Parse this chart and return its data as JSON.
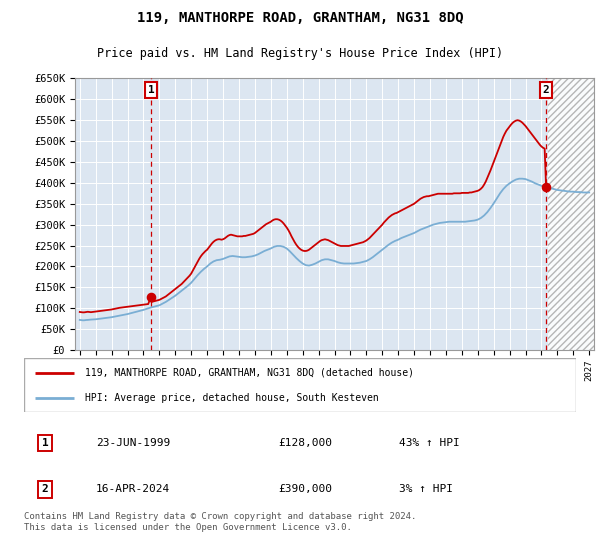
{
  "title": "119, MANTHORPE ROAD, GRANTHAM, NG31 8DQ",
  "subtitle": "Price paid vs. HM Land Registry's House Price Index (HPI)",
  "legend_line1": "119, MANTHORPE ROAD, GRANTHAM, NG31 8DQ (detached house)",
  "legend_line2": "HPI: Average price, detached house, South Kesteven",
  "footer": "Contains HM Land Registry data © Crown copyright and database right 2024.\nThis data is licensed under the Open Government Licence v3.0.",
  "bg_color": "#dce6f1",
  "grid_color": "#ffffff",
  "red_color": "#cc0000",
  "blue_color": "#7aaed4",
  "ylim": [
    0,
    650000
  ],
  "yticks": [
    0,
    50000,
    100000,
    150000,
    200000,
    250000,
    300000,
    350000,
    400000,
    450000,
    500000,
    550000,
    600000,
    650000
  ],
  "xlim_start": 1994.7,
  "xlim_end": 2027.3,
  "hatch_start": 2024.4,
  "point1_x": 1999.47,
  "point1_y": 128000,
  "point2_x": 2024.29,
  "point2_y": 390000,
  "point1_date": "23-JUN-1999",
  "point1_price": "£128,000",
  "point1_hpi": "43% ↑ HPI",
  "point2_date": "16-APR-2024",
  "point2_price": "£390,000",
  "point2_hpi": "3% ↑ HPI",
  "red_hpi_data": [
    [
      1995.0,
      91000
    ],
    [
      1995.1,
      90500
    ],
    [
      1995.2,
      90000
    ],
    [
      1995.3,
      90200
    ],
    [
      1995.4,
      90800
    ],
    [
      1995.5,
      91500
    ],
    [
      1995.6,
      91000
    ],
    [
      1995.7,
      90500
    ],
    [
      1995.8,
      91000
    ],
    [
      1995.9,
      91500
    ],
    [
      1996.0,
      92000
    ],
    [
      1996.1,
      92500
    ],
    [
      1996.2,
      93000
    ],
    [
      1996.3,
      93500
    ],
    [
      1996.4,
      94000
    ],
    [
      1996.5,
      94500
    ],
    [
      1996.6,
      95000
    ],
    [
      1996.7,
      95500
    ],
    [
      1996.8,
      96000
    ],
    [
      1996.9,
      96500
    ],
    [
      1997.0,
      97000
    ],
    [
      1997.1,
      97800
    ],
    [
      1997.2,
      98500
    ],
    [
      1997.3,
      99200
    ],
    [
      1997.4,
      100000
    ],
    [
      1997.5,
      101000
    ],
    [
      1997.6,
      101500
    ],
    [
      1997.7,
      102000
    ],
    [
      1997.8,
      102500
    ],
    [
      1997.9,
      103000
    ],
    [
      1998.0,
      103500
    ],
    [
      1998.1,
      104000
    ],
    [
      1998.2,
      104500
    ],
    [
      1998.3,
      105000
    ],
    [
      1998.4,
      105500
    ],
    [
      1998.5,
      106000
    ],
    [
      1998.6,
      106500
    ],
    [
      1998.7,
      107000
    ],
    [
      1998.8,
      107500
    ],
    [
      1998.9,
      108000
    ],
    [
      1999.0,
      108500
    ],
    [
      1999.1,
      109000
    ],
    [
      1999.2,
      109500
    ],
    [
      1999.3,
      110000
    ],
    [
      1999.47,
      128000
    ],
    [
      1999.5,
      115000
    ],
    [
      1999.6,
      116000
    ],
    [
      1999.7,
      117000
    ],
    [
      1999.8,
      118000
    ],
    [
      1999.9,
      119000
    ],
    [
      2000.0,
      120000
    ],
    [
      2000.1,
      122000
    ],
    [
      2000.2,
      124000
    ],
    [
      2000.3,
      126000
    ],
    [
      2000.4,
      128000
    ],
    [
      2000.5,
      131000
    ],
    [
      2000.6,
      134000
    ],
    [
      2000.7,
      137000
    ],
    [
      2000.8,
      140000
    ],
    [
      2000.9,
      143000
    ],
    [
      2001.0,
      146000
    ],
    [
      2001.1,
      149000
    ],
    [
      2001.2,
      152000
    ],
    [
      2001.3,
      155000
    ],
    [
      2001.4,
      158000
    ],
    [
      2001.5,
      162000
    ],
    [
      2001.6,
      166000
    ],
    [
      2001.7,
      170000
    ],
    [
      2001.8,
      174000
    ],
    [
      2001.9,
      178000
    ],
    [
      2002.0,
      183000
    ],
    [
      2002.1,
      190000
    ],
    [
      2002.2,
      197000
    ],
    [
      2002.3,
      204000
    ],
    [
      2002.4,
      211000
    ],
    [
      2002.5,
      218000
    ],
    [
      2002.6,
      224000
    ],
    [
      2002.7,
      229000
    ],
    [
      2002.8,
      233000
    ],
    [
      2002.9,
      237000
    ],
    [
      2003.0,
      240000
    ],
    [
      2003.1,
      245000
    ],
    [
      2003.2,
      250000
    ],
    [
      2003.3,
      255000
    ],
    [
      2003.4,
      259000
    ],
    [
      2003.5,
      262000
    ],
    [
      2003.6,
      264000
    ],
    [
      2003.7,
      265000
    ],
    [
      2003.8,
      265000
    ],
    [
      2003.9,
      264000
    ],
    [
      2004.0,
      265000
    ],
    [
      2004.1,
      267000
    ],
    [
      2004.2,
      270000
    ],
    [
      2004.3,
      273000
    ],
    [
      2004.4,
      275000
    ],
    [
      2004.5,
      276000
    ],
    [
      2004.6,
      275000
    ],
    [
      2004.7,
      274000
    ],
    [
      2004.8,
      273000
    ],
    [
      2004.9,
      272000
    ],
    [
      2005.0,
      272000
    ],
    [
      2005.1,
      272000
    ],
    [
      2005.2,
      272000
    ],
    [
      2005.3,
      273000
    ],
    [
      2005.4,
      273000
    ],
    [
      2005.5,
      274000
    ],
    [
      2005.6,
      275000
    ],
    [
      2005.7,
      276000
    ],
    [
      2005.8,
      277000
    ],
    [
      2005.9,
      278000
    ],
    [
      2006.0,
      280000
    ],
    [
      2006.1,
      283000
    ],
    [
      2006.2,
      286000
    ],
    [
      2006.3,
      289000
    ],
    [
      2006.4,
      292000
    ],
    [
      2006.5,
      295000
    ],
    [
      2006.6,
      298000
    ],
    [
      2006.7,
      301000
    ],
    [
      2006.8,
      303000
    ],
    [
      2006.9,
      305000
    ],
    [
      2007.0,
      307000
    ],
    [
      2007.1,
      310000
    ],
    [
      2007.2,
      312000
    ],
    [
      2007.3,
      313000
    ],
    [
      2007.4,
      313000
    ],
    [
      2007.5,
      312000
    ],
    [
      2007.6,
      310000
    ],
    [
      2007.7,
      307000
    ],
    [
      2007.8,
      303000
    ],
    [
      2007.9,
      298000
    ],
    [
      2008.0,
      293000
    ],
    [
      2008.1,
      287000
    ],
    [
      2008.2,
      280000
    ],
    [
      2008.3,
      272000
    ],
    [
      2008.4,
      265000
    ],
    [
      2008.5,
      258000
    ],
    [
      2008.6,
      252000
    ],
    [
      2008.7,
      247000
    ],
    [
      2008.8,
      243000
    ],
    [
      2008.9,
      240000
    ],
    [
      2009.0,
      238000
    ],
    [
      2009.1,
      237000
    ],
    [
      2009.2,
      237000
    ],
    [
      2009.3,
      238000
    ],
    [
      2009.4,
      240000
    ],
    [
      2009.5,
      243000
    ],
    [
      2009.6,
      246000
    ],
    [
      2009.7,
      249000
    ],
    [
      2009.8,
      252000
    ],
    [
      2009.9,
      255000
    ],
    [
      2010.0,
      258000
    ],
    [
      2010.1,
      261000
    ],
    [
      2010.2,
      263000
    ],
    [
      2010.3,
      264000
    ],
    [
      2010.4,
      265000
    ],
    [
      2010.5,
      264000
    ],
    [
      2010.6,
      263000
    ],
    [
      2010.7,
      261000
    ],
    [
      2010.8,
      259000
    ],
    [
      2010.9,
      257000
    ],
    [
      2011.0,
      255000
    ],
    [
      2011.1,
      253000
    ],
    [
      2011.2,
      251000
    ],
    [
      2011.3,
      250000
    ],
    [
      2011.4,
      249000
    ],
    [
      2011.5,
      249000
    ],
    [
      2011.6,
      249000
    ],
    [
      2011.7,
      249000
    ],
    [
      2011.8,
      249000
    ],
    [
      2011.9,
      249000
    ],
    [
      2012.0,
      250000
    ],
    [
      2012.1,
      251000
    ],
    [
      2012.2,
      252000
    ],
    [
      2012.3,
      253000
    ],
    [
      2012.4,
      254000
    ],
    [
      2012.5,
      255000
    ],
    [
      2012.6,
      256000
    ],
    [
      2012.7,
      257000
    ],
    [
      2012.8,
      258000
    ],
    [
      2012.9,
      260000
    ],
    [
      2013.0,
      262000
    ],
    [
      2013.1,
      265000
    ],
    [
      2013.2,
      268000
    ],
    [
      2013.3,
      272000
    ],
    [
      2013.4,
      276000
    ],
    [
      2013.5,
      280000
    ],
    [
      2013.6,
      284000
    ],
    [
      2013.7,
      288000
    ],
    [
      2013.8,
      292000
    ],
    [
      2013.9,
      296000
    ],
    [
      2014.0,
      300000
    ],
    [
      2014.1,
      305000
    ],
    [
      2014.2,
      309000
    ],
    [
      2014.3,
      313000
    ],
    [
      2014.4,
      317000
    ],
    [
      2014.5,
      320000
    ],
    [
      2014.6,
      323000
    ],
    [
      2014.7,
      325000
    ],
    [
      2014.8,
      327000
    ],
    [
      2014.9,
      328000
    ],
    [
      2015.0,
      330000
    ],
    [
      2015.1,
      332000
    ],
    [
      2015.2,
      334000
    ],
    [
      2015.3,
      336000
    ],
    [
      2015.4,
      338000
    ],
    [
      2015.5,
      340000
    ],
    [
      2015.6,
      342000
    ],
    [
      2015.7,
      344000
    ],
    [
      2015.8,
      346000
    ],
    [
      2015.9,
      348000
    ],
    [
      2016.0,
      350000
    ],
    [
      2016.1,
      353000
    ],
    [
      2016.2,
      356000
    ],
    [
      2016.3,
      359000
    ],
    [
      2016.4,
      362000
    ],
    [
      2016.5,
      364000
    ],
    [
      2016.6,
      366000
    ],
    [
      2016.7,
      367000
    ],
    [
      2016.8,
      368000
    ],
    [
      2016.9,
      368000
    ],
    [
      2017.0,
      369000
    ],
    [
      2017.1,
      370000
    ],
    [
      2017.2,
      371000
    ],
    [
      2017.3,
      372000
    ],
    [
      2017.4,
      373000
    ],
    [
      2017.5,
      374000
    ],
    [
      2017.6,
      374000
    ],
    [
      2017.7,
      374000
    ],
    [
      2017.8,
      374000
    ],
    [
      2017.9,
      374000
    ],
    [
      2018.0,
      374000
    ],
    [
      2018.1,
      374000
    ],
    [
      2018.2,
      374000
    ],
    [
      2018.3,
      374000
    ],
    [
      2018.4,
      374000
    ],
    [
      2018.5,
      375000
    ],
    [
      2018.6,
      375000
    ],
    [
      2018.7,
      375000
    ],
    [
      2018.8,
      375000
    ],
    [
      2018.9,
      375000
    ],
    [
      2019.0,
      376000
    ],
    [
      2019.1,
      376000
    ],
    [
      2019.2,
      376000
    ],
    [
      2019.3,
      376000
    ],
    [
      2019.4,
      376000
    ],
    [
      2019.5,
      377000
    ],
    [
      2019.6,
      377000
    ],
    [
      2019.7,
      378000
    ],
    [
      2019.8,
      379000
    ],
    [
      2019.9,
      380000
    ],
    [
      2020.0,
      381000
    ],
    [
      2020.1,
      383000
    ],
    [
      2020.2,
      386000
    ],
    [
      2020.3,
      390000
    ],
    [
      2020.4,
      396000
    ],
    [
      2020.5,
      403000
    ],
    [
      2020.6,
      412000
    ],
    [
      2020.7,
      421000
    ],
    [
      2020.8,
      430000
    ],
    [
      2020.9,
      440000
    ],
    [
      2021.0,
      450000
    ],
    [
      2021.1,
      460000
    ],
    [
      2021.2,
      470000
    ],
    [
      2021.3,
      480000
    ],
    [
      2021.4,
      490000
    ],
    [
      2021.5,
      500000
    ],
    [
      2021.6,
      510000
    ],
    [
      2021.7,
      518000
    ],
    [
      2021.8,
      525000
    ],
    [
      2021.9,
      530000
    ],
    [
      2022.0,
      535000
    ],
    [
      2022.1,
      540000
    ],
    [
      2022.2,
      544000
    ],
    [
      2022.3,
      547000
    ],
    [
      2022.4,
      549000
    ],
    [
      2022.5,
      550000
    ],
    [
      2022.6,
      549000
    ],
    [
      2022.7,
      547000
    ],
    [
      2022.8,
      544000
    ],
    [
      2022.9,
      540000
    ],
    [
      2023.0,
      536000
    ],
    [
      2023.1,
      531000
    ],
    [
      2023.2,
      526000
    ],
    [
      2023.3,
      521000
    ],
    [
      2023.4,
      516000
    ],
    [
      2023.5,
      511000
    ],
    [
      2023.6,
      506000
    ],
    [
      2023.7,
      501000
    ],
    [
      2023.8,
      496000
    ],
    [
      2023.9,
      491000
    ],
    [
      2024.0,
      487000
    ],
    [
      2024.1,
      484000
    ],
    [
      2024.2,
      482000
    ],
    [
      2024.29,
      390000
    ]
  ],
  "blue_hpi_data": [
    [
      1995.0,
      72000
    ],
    [
      1995.1,
      71500
    ],
    [
      1995.2,
      71000
    ],
    [
      1995.3,
      71200
    ],
    [
      1995.4,
      71800
    ],
    [
      1995.5,
      72000
    ],
    [
      1995.6,
      72500
    ],
    [
      1995.7,
      72800
    ],
    [
      1995.8,
      73000
    ],
    [
      1995.9,
      73200
    ],
    [
      1996.0,
      73500
    ],
    [
      1996.2,
      74500
    ],
    [
      1996.4,
      75500
    ],
    [
      1996.6,
      76500
    ],
    [
      1996.8,
      77500
    ],
    [
      1997.0,
      78500
    ],
    [
      1997.2,
      80000
    ],
    [
      1997.4,
      81500
    ],
    [
      1997.6,
      83000
    ],
    [
      1997.8,
      84500
    ],
    [
      1998.0,
      86000
    ],
    [
      1998.2,
      88000
    ],
    [
      1998.4,
      90000
    ],
    [
      1998.6,
      92000
    ],
    [
      1998.8,
      94000
    ],
    [
      1999.0,
      96000
    ],
    [
      1999.2,
      98500
    ],
    [
      1999.4,
      101000
    ],
    [
      1999.6,
      103000
    ],
    [
      1999.8,
      105000
    ],
    [
      2000.0,
      107000
    ],
    [
      2000.2,
      111000
    ],
    [
      2000.4,
      115000
    ],
    [
      2000.6,
      120000
    ],
    [
      2000.8,
      125000
    ],
    [
      2001.0,
      130000
    ],
    [
      2001.2,
      136000
    ],
    [
      2001.4,
      142000
    ],
    [
      2001.6,
      148000
    ],
    [
      2001.8,
      154000
    ],
    [
      2002.0,
      161000
    ],
    [
      2002.2,
      170000
    ],
    [
      2002.4,
      179000
    ],
    [
      2002.6,
      187000
    ],
    [
      2002.8,
      194000
    ],
    [
      2003.0,
      200000
    ],
    [
      2003.2,
      207000
    ],
    [
      2003.4,
      212000
    ],
    [
      2003.6,
      215000
    ],
    [
      2003.8,
      216000
    ],
    [
      2004.0,
      218000
    ],
    [
      2004.2,
      221000
    ],
    [
      2004.4,
      224000
    ],
    [
      2004.6,
      225000
    ],
    [
      2004.8,
      224000
    ],
    [
      2005.0,
      223000
    ],
    [
      2005.2,
      222000
    ],
    [
      2005.4,
      222000
    ],
    [
      2005.6,
      223000
    ],
    [
      2005.8,
      224000
    ],
    [
      2006.0,
      226000
    ],
    [
      2006.2,
      229000
    ],
    [
      2006.4,
      233000
    ],
    [
      2006.6,
      237000
    ],
    [
      2006.8,
      240000
    ],
    [
      2007.0,
      243000
    ],
    [
      2007.2,
      247000
    ],
    [
      2007.4,
      249000
    ],
    [
      2007.6,
      249000
    ],
    [
      2007.8,
      247000
    ],
    [
      2008.0,
      243000
    ],
    [
      2008.2,
      236000
    ],
    [
      2008.4,
      228000
    ],
    [
      2008.6,
      220000
    ],
    [
      2008.8,
      213000
    ],
    [
      2009.0,
      207000
    ],
    [
      2009.2,
      203000
    ],
    [
      2009.4,
      202000
    ],
    [
      2009.6,
      204000
    ],
    [
      2009.8,
      207000
    ],
    [
      2010.0,
      211000
    ],
    [
      2010.2,
      215000
    ],
    [
      2010.4,
      217000
    ],
    [
      2010.6,
      217000
    ],
    [
      2010.8,
      215000
    ],
    [
      2011.0,
      213000
    ],
    [
      2011.2,
      210000
    ],
    [
      2011.4,
      208000
    ],
    [
      2011.6,
      207000
    ],
    [
      2011.8,
      207000
    ],
    [
      2012.0,
      207000
    ],
    [
      2012.2,
      207000
    ],
    [
      2012.4,
      208000
    ],
    [
      2012.6,
      209000
    ],
    [
      2012.8,
      211000
    ],
    [
      2013.0,
      213000
    ],
    [
      2013.2,
      217000
    ],
    [
      2013.4,
      222000
    ],
    [
      2013.6,
      228000
    ],
    [
      2013.8,
      234000
    ],
    [
      2014.0,
      240000
    ],
    [
      2014.2,
      246000
    ],
    [
      2014.4,
      252000
    ],
    [
      2014.6,
      257000
    ],
    [
      2014.8,
      261000
    ],
    [
      2015.0,
      264000
    ],
    [
      2015.2,
      268000
    ],
    [
      2015.4,
      271000
    ],
    [
      2015.6,
      274000
    ],
    [
      2015.8,
      277000
    ],
    [
      2016.0,
      280000
    ],
    [
      2016.2,
      284000
    ],
    [
      2016.4,
      288000
    ],
    [
      2016.6,
      291000
    ],
    [
      2016.8,
      294000
    ],
    [
      2017.0,
      297000
    ],
    [
      2017.2,
      300000
    ],
    [
      2017.4,
      302000
    ],
    [
      2017.6,
      304000
    ],
    [
      2017.8,
      305000
    ],
    [
      2018.0,
      306000
    ],
    [
      2018.2,
      307000
    ],
    [
      2018.4,
      307000
    ],
    [
      2018.6,
      307000
    ],
    [
      2018.8,
      307000
    ],
    [
      2019.0,
      307000
    ],
    [
      2019.2,
      307000
    ],
    [
      2019.4,
      308000
    ],
    [
      2019.6,
      309000
    ],
    [
      2019.8,
      310000
    ],
    [
      2020.0,
      312000
    ],
    [
      2020.2,
      316000
    ],
    [
      2020.4,
      322000
    ],
    [
      2020.6,
      330000
    ],
    [
      2020.8,
      340000
    ],
    [
      2021.0,
      351000
    ],
    [
      2021.2,
      363000
    ],
    [
      2021.4,
      375000
    ],
    [
      2021.6,
      385000
    ],
    [
      2021.8,
      393000
    ],
    [
      2022.0,
      399000
    ],
    [
      2022.2,
      404000
    ],
    [
      2022.4,
      408000
    ],
    [
      2022.6,
      410000
    ],
    [
      2022.8,
      410000
    ],
    [
      2023.0,
      409000
    ],
    [
      2023.2,
      406000
    ],
    [
      2023.4,
      403000
    ],
    [
      2023.6,
      399000
    ],
    [
      2023.8,
      396000
    ],
    [
      2024.0,
      393000
    ],
    [
      2024.2,
      391000
    ],
    [
      2024.4,
      389000
    ],
    [
      2024.6,
      387000
    ],
    [
      2024.8,
      385000
    ],
    [
      2025.0,
      383000
    ],
    [
      2025.2,
      382000
    ],
    [
      2025.4,
      381000
    ],
    [
      2025.6,
      380000
    ],
    [
      2025.8,
      379000
    ],
    [
      2026.0,
      379000
    ],
    [
      2026.2,
      378000
    ],
    [
      2026.4,
      378000
    ],
    [
      2026.6,
      377000
    ],
    [
      2026.8,
      377000
    ],
    [
      2027.0,
      377000
    ]
  ]
}
